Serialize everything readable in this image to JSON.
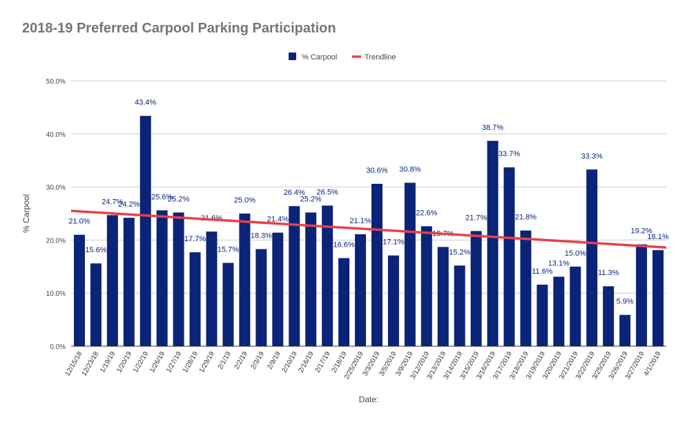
{
  "chart_data": {
    "type": "bar",
    "title": "2018-19 Preferred Carpool Parking Participation",
    "xlabel": "Date:",
    "ylabel": "% Carpool",
    "ylim": [
      0,
      50
    ],
    "yticks": [
      "0.0%",
      "10.0%",
      "20.0%",
      "30.0%",
      "40.0%",
      "50.0%"
    ],
    "grid": true,
    "legend_position": "top",
    "categories": [
      "12/15/18",
      "12/23/18",
      "1/19/19",
      "1/20/19",
      "1/22/19",
      "1/26/19",
      "1/27/19",
      "1/28/19",
      "1/29/19",
      "2/1/19",
      "2/2/19",
      "2/3/19",
      "2/9/19",
      "2/10/19",
      "2/16/19",
      "2/17/19",
      "2/18/19",
      "2/25/2019",
      "3/3/2019",
      "3/5/2019",
      "3/9/2019",
      "3/12/2019",
      "3/13/2019",
      "3/14/2019",
      "3/15/2019",
      "3/16/2019",
      "3/17/2019",
      "3/18/2019",
      "3/19/2019",
      "3/20/2019",
      "3/21/2019",
      "3/22/2019",
      "3/25/2019",
      "3/26/2019",
      "3/27/2019",
      "4/1/2019"
    ],
    "series": [
      {
        "name": "% Carpool",
        "color": "#0b2477",
        "values": [
          21.0,
          15.6,
          24.7,
          24.2,
          43.4,
          25.6,
          25.2,
          17.7,
          21.6,
          15.7,
          25.0,
          18.3,
          21.4,
          26.4,
          25.2,
          26.5,
          16.6,
          21.1,
          30.6,
          17.1,
          30.8,
          22.6,
          18.7,
          15.2,
          21.7,
          38.7,
          33.7,
          21.8,
          11.6,
          13.1,
          15.0,
          33.3,
          11.3,
          5.9,
          19.2,
          18.1
        ],
        "data_labels": [
          "21.0%",
          "15.6%",
          "24.7%",
          "24.2%",
          "43.4%",
          "25.6%",
          "25.2%",
          "17.7%",
          "21.6%",
          "15.7%",
          "25.0%",
          "18.3%",
          "21.4%",
          "26.4%",
          "25.2%",
          "26.5%",
          "16.6%",
          "21.1%",
          "30.6%",
          "17.1%",
          "30.8%",
          "22.6%",
          "18.7%",
          "15.2%",
          "21.7%",
          "38.7%",
          "33.7%",
          "21.8%",
          "11.6%",
          "13.1%",
          "15.0%",
          "33.3%",
          "11.3%",
          "5.9%",
          "19.2%",
          "18.1%"
        ]
      },
      {
        "name": "Trendline",
        "type": "line",
        "color": "#e8404a",
        "start": 25.5,
        "end": 18.6
      }
    ]
  }
}
